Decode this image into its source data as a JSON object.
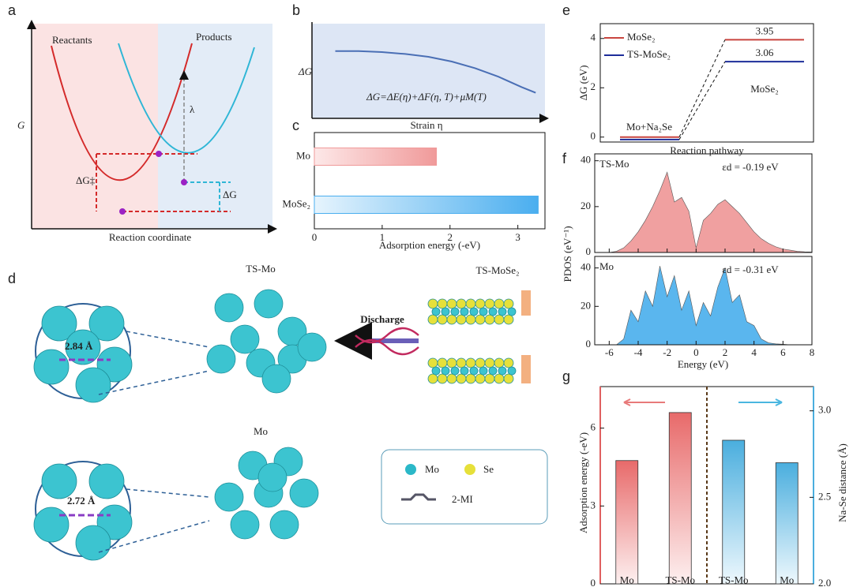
{
  "panel_labels": [
    "a",
    "b",
    "c",
    "d",
    "e",
    "f",
    "g"
  ],
  "panel_a": {
    "ylabel": "G",
    "xlabel": "Reaction coordinate",
    "reactants": "Reactants",
    "products": "Products",
    "lambda": "λ",
    "activation": "ΔG‡",
    "delta": "ΔG"
  },
  "panel_d": {
    "ts_mo": "TS-Mo",
    "mo": "Mo",
    "ts_mose2": "TS-MoSe₂",
    "discharge": "Discharge",
    "ts_distance": "2.84 Å",
    "mo_distance": "2.72 Å",
    "legend": [
      "Mo",
      "Se",
      "2-MI"
    ]
  },
  "chart_data": [
    {
      "type": "line",
      "ylabel": "ΔG",
      "xlabel": "Strain η",
      "annotation": "ΔG=ΔE(η)+ΔF(η, T)+μM(T)",
      "x": [
        1,
        2,
        3,
        4,
        5,
        6,
        7,
        8,
        9,
        9.6
      ],
      "values": [
        7.1,
        7.1,
        7.0,
        6.8,
        6.5,
        6.0,
        5.3,
        4.4,
        3.3,
        2.7
      ],
      "xlim": [
        0,
        10
      ],
      "ylim": [
        0,
        10
      ],
      "color": "#4a6fb5"
    },
    {
      "type": "hbar",
      "xlabel": "Adsorption energy (-eV)",
      "categories": [
        "Mo",
        "MoSe₂"
      ],
      "values": [
        1.8,
        3.3
      ],
      "colors": [
        "#f09a9a",
        "#4aaeef"
      ],
      "xlim": [
        0,
        3.4
      ],
      "xticks": [
        0,
        1,
        2,
        3
      ]
    },
    {
      "type": "energy",
      "ylabel": "ΔG (eV)",
      "xlabel": "Reaction pathway",
      "states": [
        "Mo+Na₂Se",
        "MoSe₂"
      ],
      "series": [
        {
          "name": "MoSe₂",
          "color": "#c9453f",
          "values": [
            0,
            3.95
          ]
        },
        {
          "name": "TS-MoSe₂",
          "color": "#1d2d9a",
          "values": [
            -0.1,
            3.06
          ]
        }
      ],
      "ylim": [
        -0.2,
        4.6
      ],
      "yticks": [
        0,
        2,
        4
      ]
    },
    {
      "type": "area",
      "ylabel": "PDOS (eV⁻¹)",
      "annotation": "TS-Mo",
      "descriptor": "εd = -0.19 eV",
      "color": "#f0a0a0",
      "x": [
        -7,
        -6.5,
        -6,
        -5.5,
        -5,
        -4.5,
        -4,
        -3.5,
        -3,
        -2.5,
        -2,
        -1.5,
        -1,
        -0.5,
        0,
        0.5,
        1,
        1.5,
        2,
        2.5,
        3,
        3.5,
        4,
        4.5,
        5,
        5.5,
        6,
        6.5,
        7,
        7.5,
        8
      ],
      "values": [
        0,
        0,
        0,
        0.5,
        2,
        5,
        9,
        14,
        20,
        27,
        35,
        22,
        24,
        18,
        2,
        14,
        17,
        21,
        23,
        20,
        17,
        13,
        9,
        6,
        4,
        2.5,
        1.5,
        1,
        0.5,
        0.3,
        0.2
      ],
      "xlim": [
        -7,
        8
      ],
      "ylim": [
        0,
        43
      ],
      "yticks": [
        0,
        20,
        40
      ]
    },
    {
      "type": "area",
      "xlabel": "Energy (eV)",
      "annotation": "Mo",
      "descriptor": "εd = -0.31 eV",
      "color": "#5ab6ee",
      "x": [
        -7,
        -6.5,
        -6,
        -5.5,
        -5,
        -4.5,
        -4,
        -3.5,
        -3,
        -2.5,
        -2,
        -1.5,
        -1,
        -0.5,
        0,
        0.5,
        1,
        1.5,
        2,
        2.5,
        3,
        3.5,
        4,
        4.5,
        5,
        5.5,
        6,
        6.5,
        7,
        7.5,
        8
      ],
      "values": [
        0,
        0,
        0,
        0,
        3,
        18,
        12,
        28,
        20,
        41,
        25,
        36,
        18,
        28,
        10,
        22,
        15,
        30,
        40,
        22,
        26,
        12,
        10,
        3,
        1,
        0.5,
        0.3,
        0,
        0,
        0,
        0
      ],
      "xlim": [
        -7,
        8
      ],
      "ylim": [
        0,
        46
      ],
      "yticks": [
        0,
        20,
        40
      ],
      "xticks": [
        -6,
        -4,
        -2,
        0,
        2,
        4,
        6,
        8
      ]
    },
    {
      "type": "bar2",
      "ylabel": "Adsorption energy (-eV)",
      "y2label": "Na-Se distance (Å)",
      "categories": [
        "Mo",
        "TS-Mo",
        "TS-Mo",
        "Mo"
      ],
      "series": [
        {
          "color": "#e86a6a",
          "values": [
            4.75,
            6.6,
            null,
            null
          ]
        },
        {
          "color": "#4aaede",
          "axis": "y2",
          "values": [
            null,
            null,
            2.83,
            2.7
          ]
        }
      ],
      "ylim": [
        0,
        7.6
      ],
      "yticks": [
        0,
        3,
        6
      ],
      "y2lim": [
        2,
        3.14
      ],
      "y2ticks": [
        {
          "value": 2,
          "label": "2.0"
        },
        {
          "value": 2.5,
          "label": "2.5"
        },
        {
          "value": 3,
          "label": "3.0"
        }
      ]
    }
  ]
}
